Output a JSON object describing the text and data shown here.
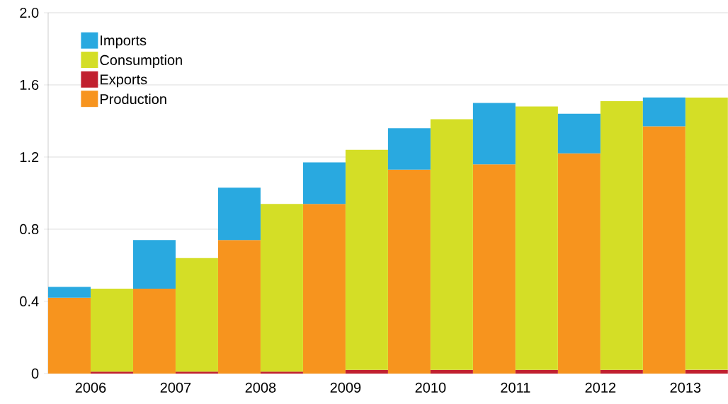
{
  "chart_data": {
    "type": "bar",
    "stacked": true,
    "categories": [
      "2006",
      null,
      "2007",
      null,
      "2008",
      null,
      "2009",
      null,
      "2010",
      null,
      "2011",
      null,
      "2012",
      null,
      "2013",
      null
    ],
    "series": [
      {
        "name": "Production",
        "color": "#f7941e",
        "values": [
          0.42,
          null,
          0.47,
          null,
          0.74,
          null,
          0.94,
          null,
          1.13,
          null,
          1.16,
          null,
          1.22,
          null,
          1.37,
          null
        ]
      },
      {
        "name": "Exports",
        "color": "#c1202f",
        "values": [
          null,
          0.01,
          null,
          0.01,
          null,
          0.01,
          null,
          0.02,
          null,
          0.02,
          null,
          0.02,
          null,
          0.02,
          null,
          0.02
        ]
      },
      {
        "name": "Consumption",
        "color": "#d4de26",
        "values": [
          null,
          0.46,
          null,
          0.63,
          null,
          0.93,
          null,
          1.22,
          null,
          1.39,
          null,
          1.46,
          null,
          1.49,
          null,
          1.51
        ]
      },
      {
        "name": "Imports",
        "color": "#29a9e0",
        "values": [
          0.06,
          null,
          0.27,
          null,
          0.29,
          null,
          0.23,
          null,
          0.23,
          null,
          0.34,
          null,
          0.22,
          null,
          0.16,
          null
        ]
      }
    ],
    "ylim": [
      0,
      2.0
    ],
    "yticks": [
      0,
      0.4,
      0.8,
      1.2,
      1.6,
      {
        "value": 2,
        "label": "2.0"
      }
    ],
    "grid": "y",
    "legend": "top left"
  }
}
